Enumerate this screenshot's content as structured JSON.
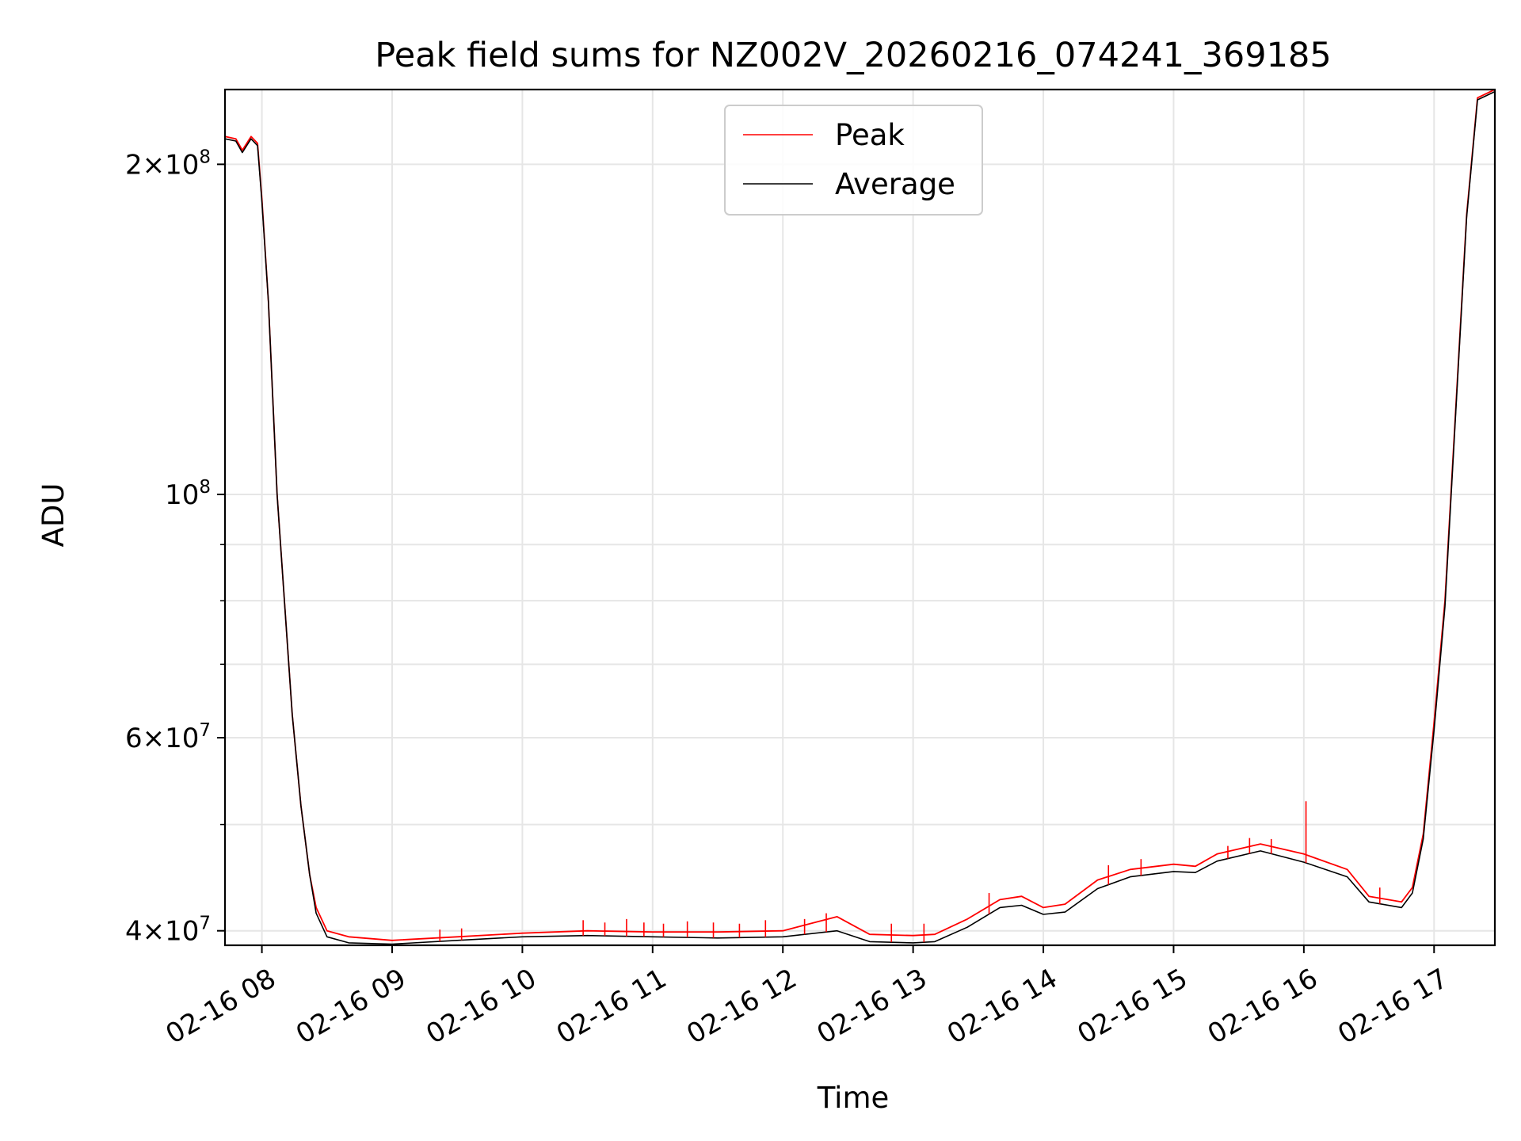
{
  "chart_data": {
    "type": "line",
    "title": "Peak field sums for NZ002V_20260216_074241_369185",
    "xlabel": "Time",
    "ylabel": "ADU",
    "yscale": "log",
    "xlim": [
      "2026-02-16 07:43",
      "2026-02-16 17:28"
    ],
    "ylim": [
      38800000,
      234000000
    ],
    "grid": true,
    "legend_position": "upper-center",
    "x_ticks": [
      {
        "value": "2026-02-16 08:00",
        "label": "02-16 08"
      },
      {
        "value": "2026-02-16 09:00",
        "label": "02-16 09"
      },
      {
        "value": "2026-02-16 10:00",
        "label": "02-16 10"
      },
      {
        "value": "2026-02-16 11:00",
        "label": "02-16 11"
      },
      {
        "value": "2026-02-16 12:00",
        "label": "02-16 12"
      },
      {
        "value": "2026-02-16 13:00",
        "label": "02-16 13"
      },
      {
        "value": "2026-02-16 14:00",
        "label": "02-16 14"
      },
      {
        "value": "2026-02-16 15:00",
        "label": "02-16 15"
      },
      {
        "value": "2026-02-16 16:00",
        "label": "02-16 16"
      },
      {
        "value": "2026-02-16 17:00",
        "label": "02-16 17"
      }
    ],
    "y_ticks": [
      {
        "value": 40000000,
        "mantissa": "4",
        "exponent": "7"
      },
      {
        "value": 60000000,
        "mantissa": "6",
        "exponent": "7"
      },
      {
        "value": 100000000,
        "mantissa": "",
        "exponent": "8"
      },
      {
        "value": 200000000,
        "mantissa": "2",
        "exponent": "8"
      }
    ],
    "y_minor_ticks": [
      50000000,
      70000000,
      80000000,
      90000000
    ],
    "series": [
      {
        "name": "Peak",
        "color": "#ff0000",
        "points": [
          [
            "2026-02-16 07:43",
            212000000
          ],
          [
            "2026-02-16 07:48",
            211000000
          ],
          [
            "2026-02-16 07:51",
            206000000
          ],
          [
            "2026-02-16 07:55",
            212000000
          ],
          [
            "2026-02-16 07:58",
            209000000
          ],
          [
            "2026-02-16 08:00",
            186000000
          ],
          [
            "2026-02-16 08:03",
            150000000
          ],
          [
            "2026-02-16 08:07",
            100000000
          ],
          [
            "2026-02-16 08:10",
            82000000
          ],
          [
            "2026-02-16 08:14",
            63000000
          ],
          [
            "2026-02-16 08:18",
            52000000
          ],
          [
            "2026-02-16 08:22",
            45000000
          ],
          [
            "2026-02-16 08:25",
            42000000
          ],
          [
            "2026-02-16 08:30",
            40000000
          ],
          [
            "2026-02-16 08:40",
            39500000
          ],
          [
            "2026-02-16 09:00",
            39200000
          ],
          [
            "2026-02-16 09:30",
            39500000
          ],
          [
            "2026-02-16 10:00",
            39800000
          ],
          [
            "2026-02-16 10:30",
            40000000
          ],
          [
            "2026-02-16 11:00",
            39900000
          ],
          [
            "2026-02-16 11:30",
            39900000
          ],
          [
            "2026-02-16 12:00",
            40000000
          ],
          [
            "2026-02-16 12:25",
            41200000
          ],
          [
            "2026-02-16 12:40",
            39700000
          ],
          [
            "2026-02-16 13:00",
            39600000
          ],
          [
            "2026-02-16 13:10",
            39700000
          ],
          [
            "2026-02-16 13:25",
            41000000
          ],
          [
            "2026-02-16 13:40",
            42700000
          ],
          [
            "2026-02-16 13:50",
            43000000
          ],
          [
            "2026-02-16 14:00",
            42000000
          ],
          [
            "2026-02-16 14:10",
            42300000
          ],
          [
            "2026-02-16 14:25",
            44500000
          ],
          [
            "2026-02-16 14:40",
            45500000
          ],
          [
            "2026-02-16 15:00",
            46000000
          ],
          [
            "2026-02-16 15:10",
            45800000
          ],
          [
            "2026-02-16 15:20",
            47000000
          ],
          [
            "2026-02-16 15:40",
            48000000
          ],
          [
            "2026-02-16 16:00",
            47000000
          ],
          [
            "2026-02-16 16:20",
            45500000
          ],
          [
            "2026-02-16 16:30",
            43000000
          ],
          [
            "2026-02-16 16:45",
            42500000
          ],
          [
            "2026-02-16 16:50",
            43800000
          ],
          [
            "2026-02-16 16:55",
            49000000
          ],
          [
            "2026-02-16 17:00",
            62000000
          ],
          [
            "2026-02-16 17:05",
            80000000
          ],
          [
            "2026-02-16 17:10",
            120000000
          ],
          [
            "2026-02-16 17:15",
            180000000
          ],
          [
            "2026-02-16 17:20",
            230000000
          ],
          [
            "2026-02-16 17:28",
            234000000
          ]
        ]
      },
      {
        "name": "Average",
        "color": "#000000",
        "points": [
          [
            "2026-02-16 07:43",
            211000000
          ],
          [
            "2026-02-16 07:48",
            210000000
          ],
          [
            "2026-02-16 07:51",
            205000000
          ],
          [
            "2026-02-16 07:55",
            211000000
          ],
          [
            "2026-02-16 07:58",
            208000000
          ],
          [
            "2026-02-16 08:00",
            185000000
          ],
          [
            "2026-02-16 08:03",
            150000000
          ],
          [
            "2026-02-16 08:07",
            100000000
          ],
          [
            "2026-02-16 08:10",
            82000000
          ],
          [
            "2026-02-16 08:14",
            63000000
          ],
          [
            "2026-02-16 08:18",
            52000000
          ],
          [
            "2026-02-16 08:22",
            45000000
          ],
          [
            "2026-02-16 08:25",
            41500000
          ],
          [
            "2026-02-16 08:30",
            39500000
          ],
          [
            "2026-02-16 08:40",
            39000000
          ],
          [
            "2026-02-16 09:00",
            38900000
          ],
          [
            "2026-02-16 09:30",
            39200000
          ],
          [
            "2026-02-16 10:00",
            39500000
          ],
          [
            "2026-02-16 10:30",
            39600000
          ],
          [
            "2026-02-16 11:00",
            39500000
          ],
          [
            "2026-02-16 11:30",
            39400000
          ],
          [
            "2026-02-16 12:00",
            39500000
          ],
          [
            "2026-02-16 12:25",
            40000000
          ],
          [
            "2026-02-16 12:40",
            39100000
          ],
          [
            "2026-02-16 13:00",
            39000000
          ],
          [
            "2026-02-16 13:10",
            39100000
          ],
          [
            "2026-02-16 13:25",
            40300000
          ],
          [
            "2026-02-16 13:40",
            42000000
          ],
          [
            "2026-02-16 13:50",
            42200000
          ],
          [
            "2026-02-16 14:00",
            41400000
          ],
          [
            "2026-02-16 14:10",
            41600000
          ],
          [
            "2026-02-16 14:25",
            43700000
          ],
          [
            "2026-02-16 14:40",
            44800000
          ],
          [
            "2026-02-16 15:00",
            45300000
          ],
          [
            "2026-02-16 15:10",
            45200000
          ],
          [
            "2026-02-16 15:20",
            46300000
          ],
          [
            "2026-02-16 15:40",
            47300000
          ],
          [
            "2026-02-16 16:00",
            46200000
          ],
          [
            "2026-02-16 16:20",
            44800000
          ],
          [
            "2026-02-16 16:30",
            42500000
          ],
          [
            "2026-02-16 16:45",
            42000000
          ],
          [
            "2026-02-16 16:50",
            43300000
          ],
          [
            "2026-02-16 16:55",
            48500000
          ],
          [
            "2026-02-16 17:00",
            61000000
          ],
          [
            "2026-02-16 17:05",
            79000000
          ],
          [
            "2026-02-16 17:10",
            119000000
          ],
          [
            "2026-02-16 17:15",
            179000000
          ],
          [
            "2026-02-16 17:20",
            229000000
          ],
          [
            "2026-02-16 17:28",
            233000000
          ]
        ]
      }
    ],
    "peak_spikes": [
      [
        "2026-02-16 09:22",
        40100000
      ],
      [
        "2026-02-16 09:32",
        40200000
      ],
      [
        "2026-02-16 10:28",
        40900000
      ],
      [
        "2026-02-16 10:38",
        40700000
      ],
      [
        "2026-02-16 10:48",
        41000000
      ],
      [
        "2026-02-16 10:56",
        40700000
      ],
      [
        "2026-02-16 11:05",
        40600000
      ],
      [
        "2026-02-16 11:16",
        40800000
      ],
      [
        "2026-02-16 11:28",
        40700000
      ],
      [
        "2026-02-16 11:40",
        40600000
      ],
      [
        "2026-02-16 11:52",
        40900000
      ],
      [
        "2026-02-16 12:10",
        41000000
      ],
      [
        "2026-02-16 12:20",
        41500000
      ],
      [
        "2026-02-16 12:50",
        40600000
      ],
      [
        "2026-02-16 13:05",
        40600000
      ],
      [
        "2026-02-16 13:35",
        43300000
      ],
      [
        "2026-02-16 14:30",
        45900000
      ],
      [
        "2026-02-16 14:45",
        46500000
      ],
      [
        "2026-02-16 15:25",
        47800000
      ],
      [
        "2026-02-16 15:35",
        48600000
      ],
      [
        "2026-02-16 15:45",
        48500000
      ],
      [
        "2026-02-16 16:01",
        52500000
      ],
      [
        "2026-02-16 16:35",
        43800000
      ]
    ]
  }
}
